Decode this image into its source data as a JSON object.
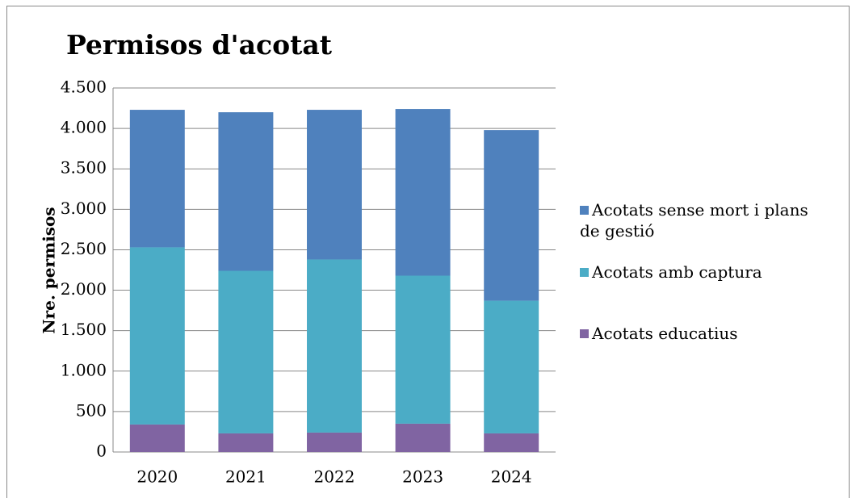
{
  "chart_data": {
    "type": "stacked_bar",
    "title": "Permisos d'acotat",
    "y_label": "Nre. permisos",
    "categories": [
      "2020",
      "2021",
      "2022",
      "2023",
      "2024"
    ],
    "series": [
      {
        "name": "Acotats educatius",
        "color": "#8064a2",
        "values": [
          340,
          230,
          240,
          350,
          230
        ]
      },
      {
        "name": "Acotats amb captura",
        "color": "#4bacc6",
        "values": [
          2190,
          2010,
          2140,
          1830,
          1640
        ]
      },
      {
        "name": "Acotats sense mort i plans de gestió",
        "color": "#4f81bd",
        "values": [
          1700,
          1960,
          1850,
          2060,
          2110
        ]
      }
    ],
    "ylim": [
      0,
      4500
    ],
    "yticks": [
      0,
      500,
      {
        "value": 1000,
        "label": "1.000"
      },
      {
        "value": 1500,
        "label": "1.500"
      },
      {
        "value": 2000,
        "label": "2.000"
      },
      {
        "value": 2500,
        "label": "2.500"
      },
      {
        "value": 3000,
        "label": "3.000"
      },
      {
        "value": 3500,
        "label": "3.500"
      },
      {
        "value": 4000,
        "label": "4.000"
      },
      {
        "value": 4500,
        "label": "4.500"
      }
    ],
    "grid": true,
    "legend": "right"
  }
}
